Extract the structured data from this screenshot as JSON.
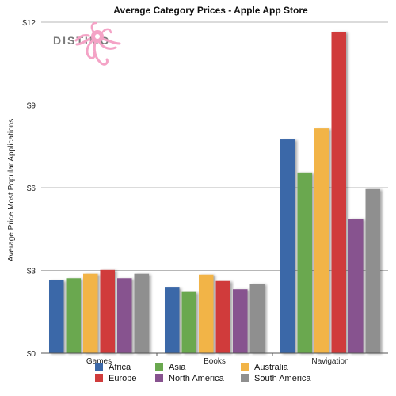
{
  "logo": {
    "text": "DISTIMO",
    "mascot_color": "#f4a3c6"
  },
  "chart_data": {
    "type": "bar",
    "title": "Average Category Prices - Apple App Store",
    "ylabel": "Average Price Most Popular Applications",
    "xlabel": "",
    "categories": [
      "Games",
      "Books",
      "Navigation"
    ],
    "ylim": [
      0,
      12
    ],
    "yticks": [
      {
        "value": 0,
        "label": "$0"
      },
      {
        "value": 3,
        "label": "$3"
      },
      {
        "value": 6,
        "label": "$6"
      },
      {
        "value": 9,
        "label": "$9"
      },
      {
        "value": 12,
        "label": "$12"
      }
    ],
    "grid": true,
    "legend_position": "bottom",
    "series": [
      {
        "name": "Africa",
        "color": "#3b68a8",
        "values": [
          2.65,
          2.38,
          7.75
        ]
      },
      {
        "name": "Asia",
        "color": "#6aa84f",
        "values": [
          2.72,
          2.22,
          6.55
        ]
      },
      {
        "name": "Australia",
        "color": "#f2b447",
        "values": [
          2.88,
          2.85,
          8.15
        ]
      },
      {
        "name": "Europe",
        "color": "#d03b3b",
        "values": [
          3.02,
          2.62,
          11.65
        ]
      },
      {
        "name": "North America",
        "color": "#87528f",
        "values": [
          2.72,
          2.32,
          4.88
        ]
      },
      {
        "name": "South America",
        "color": "#8f8f8f",
        "values": [
          2.88,
          2.52,
          5.95
        ]
      }
    ]
  }
}
